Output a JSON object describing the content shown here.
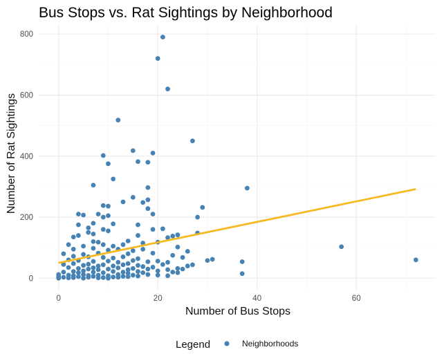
{
  "chart_data": {
    "type": "scatter",
    "title": "Bus Stops vs. Rat Sightings by Neighborhood",
    "xlabel": "Number of Bus Stops",
    "ylabel": "Number of Rat Sightings",
    "xlim": [
      -4,
      76
    ],
    "ylim": [
      -40,
      830
    ],
    "x_ticks": [
      0,
      20,
      40,
      60
    ],
    "y_ticks": [
      0,
      200,
      400,
      600,
      800
    ],
    "grid": true,
    "legend": {
      "title": "Legend",
      "position": "bottom",
      "entries": [
        "Neighborhoods"
      ]
    },
    "colors": {
      "points": "#4682b4",
      "trend": "#f5b921"
    },
    "trend_line": {
      "x": [
        0,
        72
      ],
      "y": [
        50,
        292
      ]
    },
    "series": [
      {
        "name": "Neighborhoods",
        "points": [
          [
            21,
            790
          ],
          [
            20,
            720
          ],
          [
            22,
            620
          ],
          [
            12,
            518
          ],
          [
            27,
            450
          ],
          [
            15,
            418
          ],
          [
            19,
            410
          ],
          [
            9,
            402
          ],
          [
            10,
            375
          ],
          [
            16,
            382
          ],
          [
            18,
            380
          ],
          [
            11,
            325
          ],
          [
            7,
            305
          ],
          [
            38,
            295
          ],
          [
            18,
            297
          ],
          [
            15,
            265
          ],
          [
            17,
            248
          ],
          [
            18,
            257
          ],
          [
            13,
            250
          ],
          [
            9,
            238
          ],
          [
            10,
            236
          ],
          [
            29,
            232
          ],
          [
            18,
            228
          ],
          [
            19,
            210
          ],
          [
            4,
            210
          ],
          [
            5,
            207
          ],
          [
            8,
            210
          ],
          [
            10,
            205
          ],
          [
            9,
            200
          ],
          [
            28,
            200
          ],
          [
            11,
            178
          ],
          [
            7,
            180
          ],
          [
            4,
            175
          ],
          [
            16,
            175
          ],
          [
            6,
            165
          ],
          [
            9,
            160
          ],
          [
            10,
            155
          ],
          [
            19,
            160
          ],
          [
            21,
            162
          ],
          [
            24,
            142
          ],
          [
            3,
            135
          ],
          [
            4,
            140
          ],
          [
            6,
            150
          ],
          [
            7,
            145
          ],
          [
            16,
            140
          ],
          [
            28,
            148
          ],
          [
            22,
            133
          ],
          [
            23,
            138
          ],
          [
            7,
            120
          ],
          [
            8,
            118
          ],
          [
            14,
            122
          ],
          [
            17,
            115
          ],
          [
            20,
            118
          ],
          [
            2,
            110
          ],
          [
            5,
            105
          ],
          [
            9,
            110
          ],
          [
            11,
            105
          ],
          [
            13,
            110
          ],
          [
            24,
            102
          ],
          [
            3,
            95
          ],
          [
            7,
            98
          ],
          [
            10,
            92
          ],
          [
            12,
            95
          ],
          [
            15,
            90
          ],
          [
            17,
            95
          ],
          [
            26,
            88
          ],
          [
            57,
            103
          ],
          [
            1,
            80
          ],
          [
            5,
            78
          ],
          [
            8,
            82
          ],
          [
            14,
            80
          ],
          [
            19,
            82
          ],
          [
            23,
            75
          ],
          [
            3,
            72
          ],
          [
            6,
            70
          ],
          [
            9,
            68
          ],
          [
            11,
            66
          ],
          [
            13,
            70
          ],
          [
            16,
            64
          ],
          [
            25,
            68
          ],
          [
            2,
            60
          ],
          [
            4,
            58
          ],
          [
            7,
            55
          ],
          [
            10,
            56
          ],
          [
            12,
            52
          ],
          [
            15,
            58
          ],
          [
            18,
            54
          ],
          [
            20,
            56
          ],
          [
            22,
            52
          ],
          [
            30,
            58
          ],
          [
            31,
            62
          ],
          [
            72,
            60
          ],
          [
            37,
            54
          ],
          [
            1,
            45
          ],
          [
            3,
            48
          ],
          [
            5,
            42
          ],
          [
            6,
            46
          ],
          [
            8,
            40
          ],
          [
            9,
            44
          ],
          [
            11,
            40
          ],
          [
            13,
            44
          ],
          [
            14,
            48
          ],
          [
            16,
            42
          ],
          [
            17,
            38
          ],
          [
            21,
            45
          ],
          [
            26,
            40
          ],
          [
            27,
            44
          ],
          [
            2,
            35
          ],
          [
            4,
            32
          ],
          [
            6,
            30
          ],
          [
            7,
            34
          ],
          [
            8,
            28
          ],
          [
            10,
            30
          ],
          [
            12,
            34
          ],
          [
            14,
            28
          ],
          [
            15,
            32
          ],
          [
            18,
            30
          ],
          [
            19,
            36
          ],
          [
            22,
            28
          ],
          [
            24,
            32
          ],
          [
            25,
            30
          ],
          [
            1,
            20
          ],
          [
            3,
            22
          ],
          [
            4,
            18
          ],
          [
            5,
            24
          ],
          [
            7,
            20
          ],
          [
            9,
            18
          ],
          [
            11,
            22
          ],
          [
            13,
            20
          ],
          [
            14,
            16
          ],
          [
            16,
            22
          ],
          [
            17,
            18
          ],
          [
            20,
            24
          ],
          [
            23,
            20
          ],
          [
            24,
            18
          ],
          [
            0,
            12
          ],
          [
            2,
            10
          ],
          [
            3,
            8
          ],
          [
            5,
            12
          ],
          [
            6,
            9
          ],
          [
            8,
            10
          ],
          [
            10,
            8
          ],
          [
            12,
            12
          ],
          [
            13,
            6
          ],
          [
            15,
            10
          ],
          [
            16,
            7
          ],
          [
            18,
            12
          ],
          [
            20,
            10
          ],
          [
            22,
            8
          ],
          [
            37,
            15
          ],
          [
            0,
            5
          ],
          [
            1,
            3
          ],
          [
            3,
            2
          ],
          [
            4,
            5
          ],
          [
            6,
            3
          ],
          [
            7,
            6
          ],
          [
            9,
            2
          ],
          [
            11,
            4
          ],
          [
            12,
            3
          ],
          [
            14,
            5
          ],
          [
            0,
            0
          ],
          [
            2,
            1
          ],
          [
            5,
            0
          ],
          [
            8,
            1
          ],
          [
            10,
            0
          ]
        ]
      }
    ]
  }
}
